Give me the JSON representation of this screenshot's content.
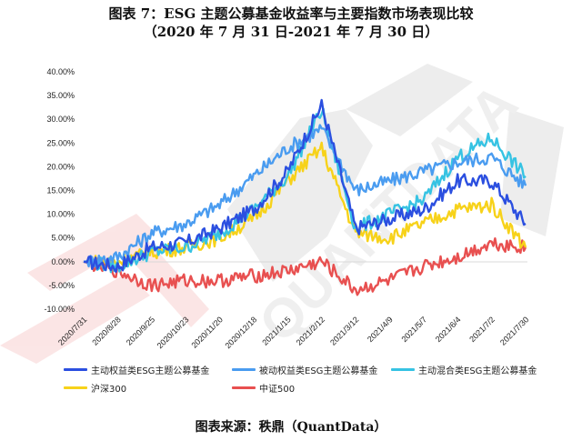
{
  "title": "图表 7：ESG 主题公募基金收益率与主要指数市场表现比较",
  "subtitle": "（2020 年 7 月 31 日-2021 年 7 月 30 日）",
  "source": "图表来源：秩鼎（QuantData）",
  "watermark": "QUANTDATA",
  "chart_data": {
    "type": "line",
    "title": "ESG 主题公募基金收益率与主要指数市场表现比较",
    "subtitle": "2020/7/31 - 2021/7/30",
    "xlabel": "",
    "ylabel": "",
    "ylim": [
      -10,
      40
    ],
    "yticks": [
      "40.00%",
      "35.00%",
      "30.00%",
      "25.00%",
      "20.00%",
      "15.00%",
      "10.00%",
      "5.00%",
      "0.00%",
      "-5.00%",
      "-10.00%"
    ],
    "grid": false,
    "legend_position": "bottom",
    "categories": [
      "2020/7/31",
      "2020/8/28",
      "2020/9/25",
      "2020/10/23",
      "2020/11/20",
      "2020/12/18",
      "2021/1/15",
      "2021/2/12",
      "2021/3/12",
      "2021/4/9",
      "2021/5/7",
      "2021/6/4",
      "2021/7/2",
      "2021/7/30"
    ],
    "series": [
      {
        "name": "主动权益类ESG主题公募基金",
        "color": "#2b4fe0",
        "values": [
          0,
          -1,
          3,
          4,
          7,
          11,
          19,
          33,
          7,
          9,
          11,
          17,
          17,
          8
        ]
      },
      {
        "name": "被动权益类ESG主题公募基金",
        "color": "#4a9cf0",
        "values": [
          0,
          1,
          6,
          8,
          12,
          18,
          24,
          28,
          15,
          17,
          19,
          21,
          22,
          16
        ]
      },
      {
        "name": "主动混合类ESG主题公募基金",
        "color": "#36c3e3",
        "values": [
          0,
          -1,
          2,
          3,
          6,
          11,
          18,
          32,
          7,
          10,
          13,
          22,
          26,
          18
        ]
      },
      {
        "name": "沪深300",
        "color": "#f7d21a",
        "values": [
          0,
          0,
          2,
          3,
          5,
          9,
          17,
          24,
          6,
          5,
          8,
          11,
          12,
          3
        ]
      },
      {
        "name": "中证500",
        "color": "#e85050",
        "values": [
          0,
          -2,
          -5,
          -4,
          -4,
          -3,
          -2,
          0,
          -6,
          -4,
          -1,
          1,
          4,
          3
        ]
      }
    ]
  },
  "legend": [
    {
      "label": "主动权益类ESG主题公募基金",
      "color": "#2b4fe0"
    },
    {
      "label": "被动权益类ESG主题公募基金",
      "color": "#4a9cf0"
    },
    {
      "label": "主动混合类ESG主题公募基金",
      "color": "#36c3e3"
    },
    {
      "label": "沪深300",
      "color": "#f7d21a"
    },
    {
      "label": "中证500",
      "color": "#e85050"
    }
  ]
}
